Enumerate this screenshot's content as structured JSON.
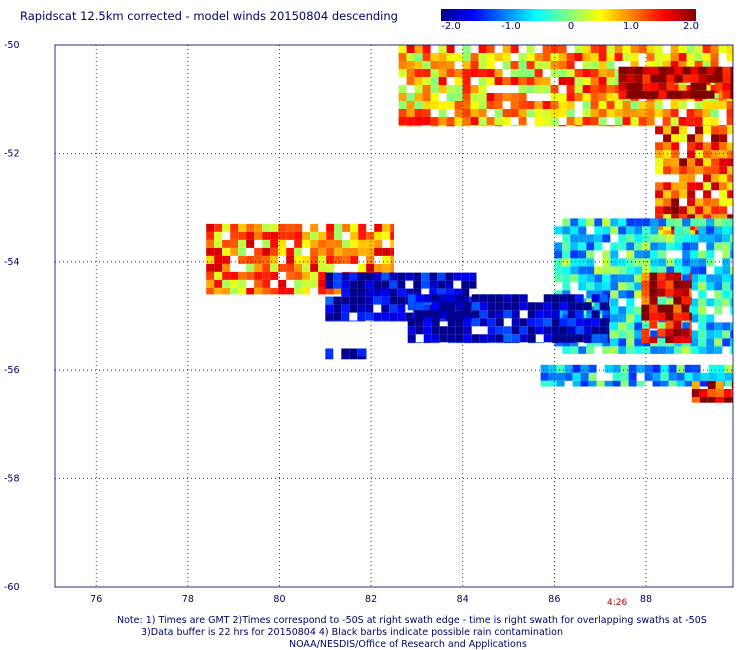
{
  "title": "Rapidscat 12.5km corrected - model winds 20150804 descending",
  "colorbar": {
    "tick_labels": [
      "-2.0",
      "-1.0",
      "0",
      "1.0",
      "2.0"
    ],
    "tick_values": [
      -2.0,
      -1.0,
      0,
      1.0,
      2.0
    ],
    "range": [
      -2.0,
      2.0
    ],
    "colors": [
      "#00008c",
      "#0000ff",
      "#0080ff",
      "#00ffff",
      "#80ff80",
      "#ffff00",
      "#ff8000",
      "#ff0000",
      "#800000"
    ]
  },
  "axes": {
    "x_ticks": [
      "76",
      "78",
      "80",
      "82",
      "84",
      "86",
      "88"
    ],
    "x_values": [
      76,
      78,
      80,
      82,
      84,
      86,
      88
    ],
    "y_ticks": [
      "-50",
      "-52",
      "-54",
      "-56",
      "-58",
      "-60"
    ],
    "y_values": [
      -50,
      -52,
      -54,
      -56,
      -58,
      -60
    ],
    "xlim": [
      75.1,
      89.9
    ],
    "ylim": [
      -60,
      -50
    ],
    "grid": "dotted"
  },
  "timestamp": "4:26",
  "notes": [
    "Note: 1) Times are GMT 2)Times correspond to -50S at right swath edge - time is right swath for overlapping swaths at -50S",
    "3)Data buffer is 22 hrs for 20150804 4) Black barbs indicate possible rain contamination",
    "NOAA/NESDIS/Office of Research and Applications"
  ],
  "chart_data": {
    "type": "heatmap",
    "title": "Rapidscat 12.5km corrected - model winds 20150804 descending",
    "xlabel": "",
    "ylabel": "",
    "value_range": [
      -2.0,
      2.0
    ],
    "regions": [
      {
        "lon": [
          82.6,
          89.9
        ],
        "lat": [
          -51.5,
          -50.0
        ],
        "value_mean": 0.8
      },
      {
        "lon": [
          87.4,
          89.9
        ],
        "lat": [
          -51.0,
          -50.4
        ],
        "value_mean": 2.0
      },
      {
        "lon": [
          88.2,
          89.9
        ],
        "lat": [
          -53.5,
          -51.5
        ],
        "value_mean": 1.2
      },
      {
        "lon": [
          78.4,
          82.5
        ],
        "lat": [
          -54.6,
          -53.3
        ],
        "value_mean": 0.9
      },
      {
        "lon": [
          81.0,
          84.3
        ],
        "lat": [
          -55.1,
          -54.2
        ],
        "value_mean": -1.8
      },
      {
        "lon": [
          86.0,
          89.9
        ],
        "lat": [
          -55.7,
          -53.2
        ],
        "value_mean": -0.5
      },
      {
        "lon": [
          87.9,
          89.0
        ],
        "lat": [
          -55.5,
          -54.2
        ],
        "value_mean": 1.6
      },
      {
        "lon": [
          82.8,
          87.2
        ],
        "lat": [
          -55.5,
          -54.6
        ],
        "value_mean": -1.9
      },
      {
        "lon": [
          81.0,
          81.9
        ],
        "lat": [
          -55.8,
          -55.6
        ],
        "value_mean": -2.0
      },
      {
        "lon": [
          85.7,
          89.9
        ],
        "lat": [
          -56.3,
          -55.9
        ],
        "value_mean": -0.6
      },
      {
        "lon": [
          89.0,
          89.9
        ],
        "lat": [
          -56.6,
          -56.2
        ],
        "value_mean": 1.5
      }
    ]
  }
}
